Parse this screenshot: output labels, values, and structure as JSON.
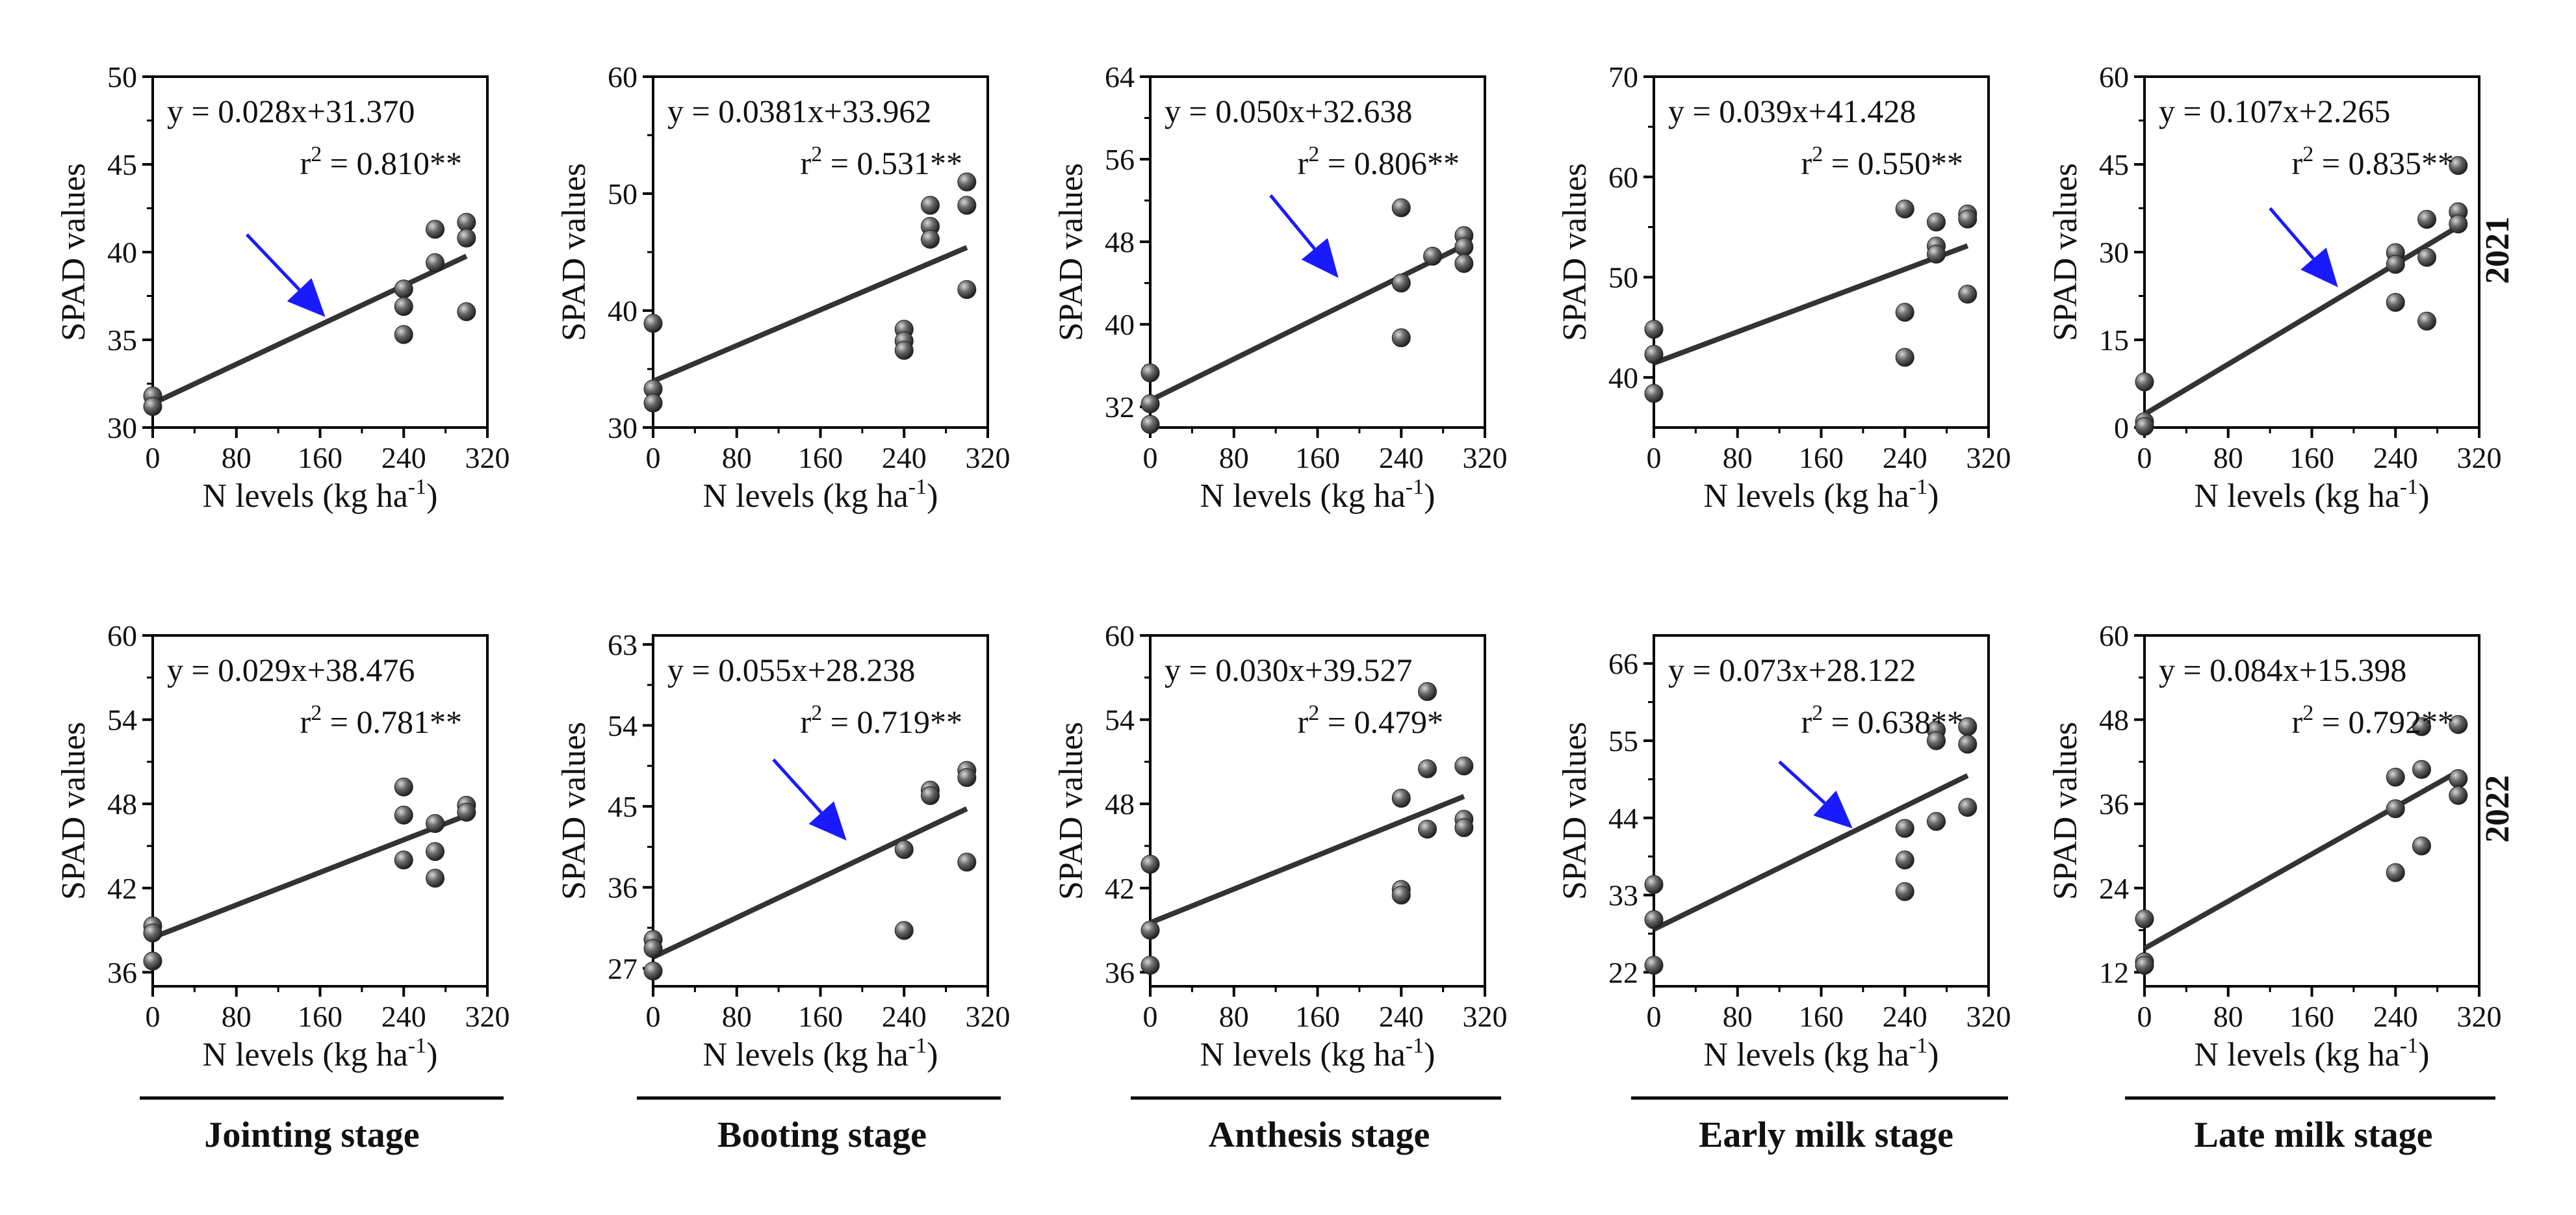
{
  "figure": {
    "years": [
      "2021",
      "2022"
    ],
    "x_label_main": "N levels (kg ha",
    "x_label_sup": "-1",
    "x_label_close": ")",
    "y_label": "SPAD values",
    "stages": [
      "Jointing stage",
      "Booting stage",
      "Anthesis stage",
      "Early milk stage",
      "Late milk stage"
    ],
    "colors": {
      "axis": "#000000",
      "line": "#333333",
      "point": "#4a4a4a",
      "arrow": "#1a1aff"
    }
  },
  "chart_data": [
    {
      "type": "scatter",
      "year": "2021",
      "stage": "Jointing stage",
      "xlim": [
        0,
        320
      ],
      "xticks": [
        0,
        80,
        160,
        240,
        320
      ],
      "ylim": [
        30,
        50
      ],
      "yticks": [
        30,
        35,
        40,
        45,
        50
      ],
      "equation": "y = 0.028x+31.370",
      "r2_label": "r",
      "r2_value": " = 0.810**",
      "fit": {
        "slope": 0.028,
        "intercept": 31.37
      },
      "points": [
        [
          0,
          31.8
        ],
        [
          0,
          31.2
        ],
        [
          240,
          37.9
        ],
        [
          240,
          36.9
        ],
        [
          240,
          35.3
        ],
        [
          270,
          41.3
        ],
        [
          270,
          39.4
        ],
        [
          300,
          41.7
        ],
        [
          300,
          40.8
        ],
        [
          300,
          36.6
        ]
      ],
      "arrow": {
        "from": [
          90,
          41
        ],
        "to": [
          165,
          36.3
        ]
      },
      "xlabel": "N levels (kg ha-1)",
      "ylabel": "SPAD values"
    },
    {
      "type": "scatter",
      "year": "2021",
      "stage": "Booting stage",
      "xlim": [
        0,
        320
      ],
      "xticks": [
        0,
        80,
        160,
        240,
        320
      ],
      "ylim": [
        30,
        60
      ],
      "yticks": [
        30,
        40,
        50,
        60
      ],
      "equation": "y = 0.0381x+33.962",
      "r2_label": "r",
      "r2_value": " = 0.531**",
      "fit": {
        "slope": 0.0381,
        "intercept": 33.962
      },
      "points": [
        [
          0,
          38.9
        ],
        [
          0,
          33.3
        ],
        [
          0,
          32.1
        ],
        [
          240,
          38.4
        ],
        [
          240,
          37.4
        ],
        [
          240,
          36.6
        ],
        [
          265,
          49.0
        ],
        [
          265,
          47.2
        ],
        [
          265,
          46.1
        ],
        [
          300,
          51.0
        ],
        [
          300,
          49.0
        ],
        [
          300,
          41.8
        ]
      ],
      "xlabel": "N levels (kg ha-1)",
      "ylabel": "SPAD values"
    },
    {
      "type": "scatter",
      "year": "2021",
      "stage": "Anthesis stage",
      "xlim": [
        0,
        320
      ],
      "xticks": [
        0,
        80,
        160,
        240,
        320
      ],
      "ylim": [
        30,
        64
      ],
      "yticks": [
        32,
        40,
        48,
        56,
        64
      ],
      "equation": "y = 0.050x+32.638",
      "r2_label": "r",
      "r2_value": " = 0.806**",
      "fit": {
        "slope": 0.05,
        "intercept": 32.638
      },
      "points": [
        [
          0,
          35.3
        ],
        [
          0,
          32.3
        ],
        [
          0,
          30.3
        ],
        [
          240,
          51.3
        ],
        [
          240,
          44.0
        ],
        [
          240,
          38.7
        ],
        [
          270,
          46.6
        ],
        [
          300,
          48.6
        ],
        [
          300,
          47.5
        ],
        [
          300,
          45.9
        ]
      ],
      "arrow": {
        "from": [
          115,
          52.5
        ],
        "to": [
          180,
          44.5
        ]
      },
      "xlabel": "N levels (kg ha-1)",
      "ylabel": "SPAD values"
    },
    {
      "type": "scatter",
      "year": "2021",
      "stage": "Early milk stage",
      "xlim": [
        0,
        320
      ],
      "xticks": [
        0,
        80,
        160,
        240,
        320
      ],
      "ylim": [
        35,
        70
      ],
      "yticks": [
        40,
        50,
        60,
        70
      ],
      "equation": "y = 0.039x+41.428",
      "r2_label": "r",
      "r2_value": " = 0.550**",
      "fit": {
        "slope": 0.039,
        "intercept": 41.428
      },
      "points": [
        [
          0,
          44.8
        ],
        [
          0,
          42.3
        ],
        [
          0,
          38.4
        ],
        [
          240,
          56.8
        ],
        [
          240,
          46.5
        ],
        [
          240,
          42.0
        ],
        [
          270,
          55.5
        ],
        [
          270,
          53.1
        ],
        [
          270,
          52.3
        ],
        [
          300,
          56.3
        ],
        [
          300,
          55.8
        ],
        [
          300,
          48.3
        ]
      ],
      "xlabel": "N levels (kg ha-1)",
      "ylabel": "SPAD values"
    },
    {
      "type": "scatter",
      "year": "2021",
      "stage": "Late milk stage",
      "xlim": [
        0,
        320
      ],
      "xticks": [
        0,
        80,
        160,
        240,
        320
      ],
      "ylim": [
        0,
        60
      ],
      "yticks": [
        0,
        15,
        30,
        45,
        60
      ],
      "equation": "y = 0.107x+2.265",
      "r2_label": "r",
      "r2_value": " = 0.835**",
      "fit": {
        "slope": 0.107,
        "intercept": 2.265
      },
      "points": [
        [
          0,
          7.8
        ],
        [
          0,
          1.0
        ],
        [
          0,
          0.2
        ],
        [
          240,
          29.9
        ],
        [
          240,
          27.9
        ],
        [
          240,
          21.4
        ],
        [
          270,
          35.6
        ],
        [
          270,
          29.1
        ],
        [
          270,
          18.2
        ],
        [
          300,
          44.8
        ],
        [
          300,
          36.9
        ],
        [
          300,
          34.8
        ]
      ],
      "arrow": {
        "from": [
          120,
          37.5
        ],
        "to": [
          185,
          24.0
        ]
      },
      "xlabel": "N levels (kg ha-1)",
      "ylabel": "SPAD values"
    },
    {
      "type": "scatter",
      "year": "2022",
      "stage": "Jointing stage",
      "xlim": [
        0,
        320
      ],
      "xticks": [
        0,
        80,
        160,
        240,
        320
      ],
      "ylim": [
        35,
        60
      ],
      "yticks": [
        36,
        42,
        48,
        54,
        60
      ],
      "equation": "y = 0.029x+38.476",
      "r2_label": "r",
      "r2_value": " = 0.781**",
      "fit": {
        "slope": 0.029,
        "intercept": 38.476
      },
      "points": [
        [
          0,
          39.3
        ],
        [
          0,
          38.8
        ],
        [
          0,
          36.8
        ],
        [
          240,
          49.2
        ],
        [
          240,
          47.2
        ],
        [
          240,
          44.0
        ],
        [
          270,
          46.6
        ],
        [
          270,
          44.6
        ],
        [
          270,
          42.7
        ],
        [
          300,
          47.9
        ],
        [
          300,
          47.4
        ]
      ],
      "xlabel": "N levels (kg ha-1)",
      "ylabel": "SPAD values"
    },
    {
      "type": "scatter",
      "year": "2022",
      "stage": "Booting stage",
      "xlim": [
        0,
        320
      ],
      "xticks": [
        0,
        80,
        160,
        240,
        320
      ],
      "ylim": [
        25,
        64
      ],
      "yticks": [
        27,
        36,
        45,
        54,
        63
      ],
      "equation": "y = 0.055x+28.238",
      "r2_label": "r",
      "r2_value": " = 0.719**",
      "fit": {
        "slope": 0.055,
        "intercept": 28.238
      },
      "points": [
        [
          0,
          30.2
        ],
        [
          0,
          29.2
        ],
        [
          0,
          26.7
        ],
        [
          240,
          40.2
        ],
        [
          240,
          31.2
        ],
        [
          265,
          46.8
        ],
        [
          265,
          46.2
        ],
        [
          300,
          49.0
        ],
        [
          300,
          48.2
        ],
        [
          300,
          38.8
        ]
      ],
      "arrow": {
        "from": [
          115,
          50.2
        ],
        "to": [
          185,
          41.2
        ]
      },
      "xlabel": "N levels (kg ha-1)",
      "ylabel": "SPAD values"
    },
    {
      "type": "scatter",
      "year": "2022",
      "stage": "Anthesis stage",
      "xlim": [
        0,
        320
      ],
      "xticks": [
        0,
        80,
        160,
        240,
        320
      ],
      "ylim": [
        35,
        60
      ],
      "yticks": [
        36,
        42,
        48,
        54,
        60
      ],
      "equation": "y = 0.030x+39.527",
      "r2_label": "r",
      "r2_value": " = 0.479*",
      "fit": {
        "slope": 0.03,
        "intercept": 39.527
      },
      "points": [
        [
          0,
          43.7
        ],
        [
          0,
          39.0
        ],
        [
          0,
          36.5
        ],
        [
          240,
          48.4
        ],
        [
          240,
          41.9
        ],
        [
          240,
          41.5
        ],
        [
          265,
          56.0
        ],
        [
          265,
          50.5
        ],
        [
          265,
          46.2
        ],
        [
          300,
          50.7
        ],
        [
          300,
          46.9
        ],
        [
          300,
          46.3
        ]
      ],
      "xlabel": "N levels (kg ha-1)",
      "ylabel": "SPAD values"
    },
    {
      "type": "scatter",
      "year": "2022",
      "stage": "Early milk stage",
      "xlim": [
        0,
        320
      ],
      "xticks": [
        0,
        80,
        160,
        240,
        320
      ],
      "ylim": [
        20,
        70
      ],
      "yticks": [
        22,
        33,
        44,
        55,
        66
      ],
      "equation": "y = 0.073x+28.122",
      "r2_label": "r",
      "r2_value": " = 0.638**",
      "fit": {
        "slope": 0.073,
        "intercept": 28.122
      },
      "points": [
        [
          0,
          34.5
        ],
        [
          0,
          29.5
        ],
        [
          0,
          23.0
        ],
        [
          240,
          42.5
        ],
        [
          240,
          38.0
        ],
        [
          240,
          33.5
        ],
        [
          270,
          56.5
        ],
        [
          270,
          55.0
        ],
        [
          270,
          43.5
        ],
        [
          300,
          57.0
        ],
        [
          300,
          54.5
        ],
        [
          300,
          45.5
        ]
      ],
      "arrow": {
        "from": [
          120,
          52.0
        ],
        "to": [
          190,
          42.5
        ]
      },
      "xlabel": "N levels (kg ha-1)",
      "ylabel": "SPAD values"
    },
    {
      "type": "scatter",
      "year": "2022",
      "stage": "Late milk stage",
      "xlim": [
        0,
        320
      ],
      "xticks": [
        0,
        80,
        160,
        240,
        320
      ],
      "ylim": [
        10,
        60
      ],
      "yticks": [
        12,
        24,
        36,
        48,
        60
      ],
      "equation": "y = 0.084x+15.398",
      "r2_label": "r",
      "r2_value": " = 0.792**",
      "fit": {
        "slope": 0.084,
        "intercept": 15.398
      },
      "points": [
        [
          0,
          19.6
        ],
        [
          0,
          13.5
        ],
        [
          0,
          13.0
        ],
        [
          240,
          39.8
        ],
        [
          240,
          35.3
        ],
        [
          240,
          26.2
        ],
        [
          265,
          47.0
        ],
        [
          265,
          40.9
        ],
        [
          265,
          30.0
        ],
        [
          300,
          47.3
        ],
        [
          300,
          39.6
        ],
        [
          300,
          37.2
        ]
      ],
      "xlabel": "N levels (kg ha-1)",
      "ylabel": "SPAD values"
    }
  ]
}
